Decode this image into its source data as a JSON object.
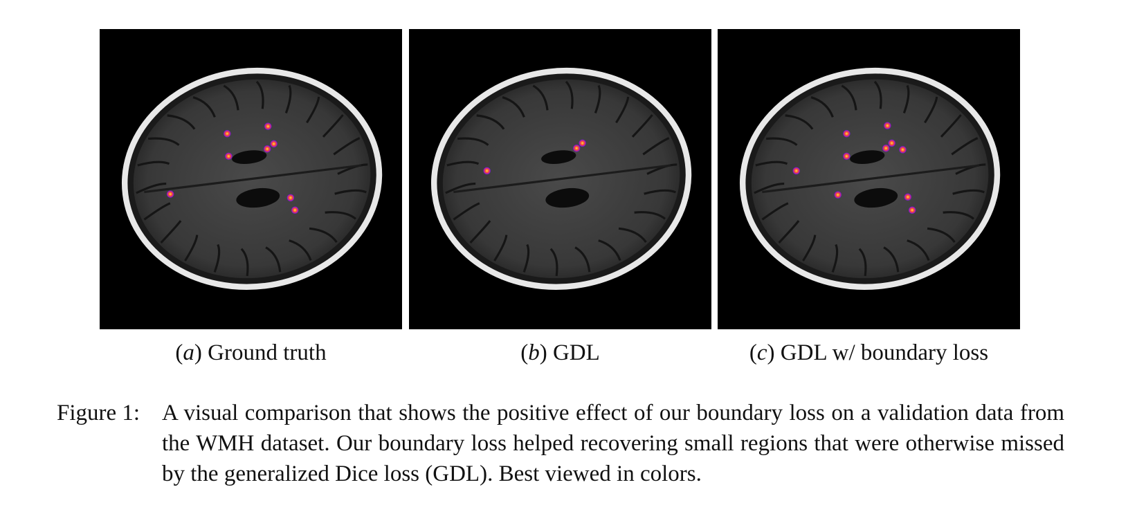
{
  "panels": [
    {
      "label_parts": [
        "(",
        "a",
        ")"
      ],
      "caption": "Ground truth"
    },
    {
      "label_parts": [
        "(",
        "b",
        ")"
      ],
      "caption": "GDL"
    },
    {
      "label_parts": [
        "(",
        "c",
        ")"
      ],
      "caption": "GDL w/ boundary loss"
    }
  ],
  "figure": {
    "label": "Figure 1:",
    "text": "A visual comparison that shows the positive effect of our boundary loss on a validation data from the WMH dataset.  Our boundary loss helped recovering small regions that were otherwise missed by the generalized Dice loss (GDL). Best viewed in colors."
  }
}
